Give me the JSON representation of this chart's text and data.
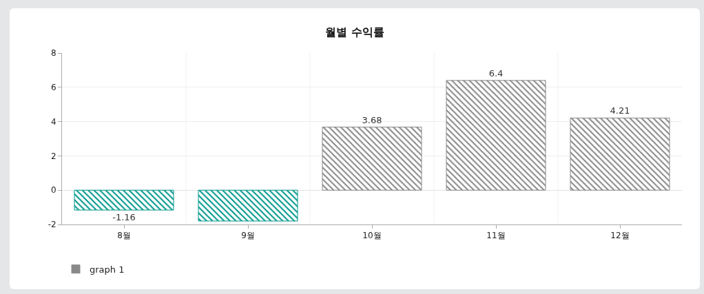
{
  "chart_data": {
    "type": "bar",
    "title": "월별 수익률",
    "categories": [
      "8월",
      "9월",
      "10월",
      "11월",
      "12월"
    ],
    "series": [
      {
        "name": "graph 1",
        "color": "#888888",
        "colors": [
          "#00968a",
          "#00968a",
          "#888888",
          "#888888",
          "#888888"
        ],
        "values": [
          -1.16,
          -1.8,
          3.68,
          6.4,
          4.21
        ],
        "value_labels": [
          "-1.16",
          null,
          "3.68",
          "6.4",
          "4.21"
        ]
      }
    ],
    "ylim": [
      -2,
      8
    ],
    "yticks": [
      -2,
      0,
      2,
      4,
      6,
      8
    ],
    "grid": true,
    "legend": "bottom left"
  }
}
